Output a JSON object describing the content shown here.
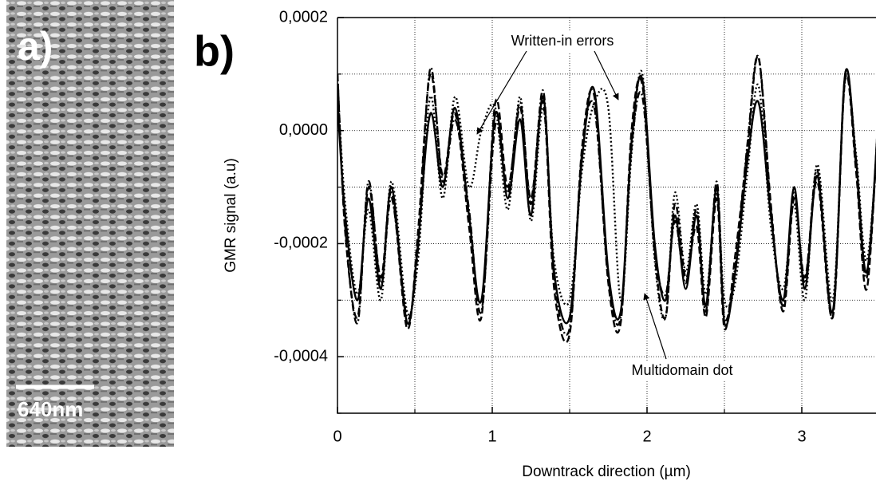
{
  "image_panel": {
    "label": "a)",
    "scale_bar": "640nm"
  },
  "chart_data": {
    "type": "line",
    "panel_label": "b)",
    "x_label": "Downtrack direction (µm)",
    "y_label": "GMR signal (a.u)",
    "xlim": [
      0,
      3.5
    ],
    "ylim": [
      -0.0005,
      0.0002
    ],
    "xticks": [
      0,
      1,
      2,
      3
    ],
    "yticks": [
      {
        "value": 0.0002,
        "label": "0,0002"
      },
      {
        "value": 0,
        "label": "0,0000"
      },
      {
        "value": -0.0002,
        "label": "-0,0002"
      },
      {
        "value": -0.0004,
        "label": "-0,0004"
      }
    ],
    "x_minor_ticks": [
      0.5,
      1.5,
      2.5,
      3.5
    ],
    "y_minor_ticks": [
      0.0001,
      -0.0001,
      -0.0003,
      -0.0005
    ],
    "grid": true,
    "annotations": [
      {
        "text": "Written-in errors"
      },
      {
        "text": "Multidomain dot"
      }
    ],
    "x": [
      0,
      0.05,
      0.13,
      0.2,
      0.28,
      0.35,
      0.45,
      0.52,
      0.6,
      0.68,
      0.76,
      0.85,
      0.93,
      1.02,
      1.1,
      1.18,
      1.25,
      1.33,
      1.4,
      1.5,
      1.58,
      1.66,
      1.75,
      1.83,
      1.9,
      1.97,
      2.05,
      2.12,
      2.18,
      2.25,
      2.32,
      2.38,
      2.45,
      2.5,
      2.57,
      2.65,
      2.72,
      2.8,
      2.88,
      2.95,
      3.02,
      3.1,
      3.2,
      3.28,
      3.35,
      3.42,
      3.5
    ],
    "series": [
      {
        "color": "#000000",
        "dash": "solid",
        "values": [
          5e-05,
          -0.00015,
          -0.0003,
          -0.00012,
          -0.00028,
          -0.0001,
          -0.00034,
          -0.0002,
          3e-05,
          -0.0001,
          4e-05,
          -0.00015,
          -0.0003,
          3e-05,
          -0.00012,
          2e-05,
          -0.00015,
          6e-05,
          -0.00025,
          -0.00033,
          -5e-05,
          7e-05,
          -0.00025,
          -0.00032,
          -2e-05,
          9e-05,
          -0.0002,
          -0.0003,
          -0.00015,
          -0.00028,
          -0.00015,
          -0.00031,
          -0.0001,
          -0.00034,
          -0.00025,
          -5e-05,
          5e-05,
          -0.00015,
          -0.0003,
          -0.0001,
          -0.00028,
          -8e-05,
          -0.00032,
          0.0001,
          -5e-05,
          -0.00025,
          5e-05
        ]
      },
      {
        "color": "#000000",
        "dash": "dash",
        "values": [
          0.0001,
          -0.00018,
          -0.00033,
          -0.0001,
          -0.00026,
          -0.00011,
          -0.00035,
          -0.00018,
          0.0001,
          -8e-05,
          3e-05,
          -0.00017,
          -0.00033,
          5e-05,
          -0.0001,
          4e-05,
          -0.00012,
          5e-05,
          -0.00028,
          -0.00036,
          -3e-05,
          6e-05,
          -0.00027,
          -0.00034,
          0.0,
          8e-05,
          -0.00022,
          -0.00033,
          -0.00013,
          -0.00026,
          -0.00017,
          -0.00033,
          -0.00012,
          -0.00035,
          -0.00022,
          -3e-05,
          0.00013,
          -0.00013,
          -0.00032,
          -0.00012,
          -0.00026,
          -9e-05,
          -0.00033,
          9e-05,
          -7e-05,
          -0.00028,
          6e-05
        ]
      },
      {
        "color": "#000000",
        "dash": "dot",
        "values": [
          8e-05,
          -0.00013,
          -0.00029,
          -0.00014,
          -0.0003,
          -9e-05,
          -0.00032,
          -0.00023,
          6e-05,
          -0.00012,
          6e-05,
          -0.0001,
          0.0,
          4e-05,
          -0.00014,
          6e-05,
          -0.00016,
          4e-05,
          -0.00023,
          -0.0003,
          -7e-05,
          5e-05,
          4e-05,
          -0.0003,
          -4e-05,
          0.0001,
          -0.00023,
          -0.00033,
          -0.00011,
          -0.00025,
          -0.00013,
          -0.00029,
          -0.00011,
          -0.0003,
          -0.00027,
          -7e-05,
          8e-05,
          -0.00017,
          -0.00028,
          -0.00013,
          -0.0003,
          -6e-05,
          -0.0003,
          9e-05,
          -4e-05,
          -0.00023,
          3e-05
        ]
      },
      {
        "color": "#000000",
        "dash": "dashdot",
        "values": [
          0.0001,
          -0.00017,
          -0.00034,
          -9e-05,
          -0.00027,
          -0.00012,
          -0.00033,
          -0.00021,
          0.00011,
          -9e-05,
          2e-05,
          -0.00014,
          -0.00032,
          1e-05,
          -0.00011,
          5e-05,
          -0.00013,
          7e-05,
          -0.00026,
          -0.00035,
          -4e-05,
          4e-05,
          -0.00026,
          -0.00033,
          -3e-05,
          6e-05,
          -0.00021,
          -0.00029,
          -0.00016,
          -0.00027,
          -0.00014,
          -0.00032,
          -9e-05,
          -0.00033,
          -0.00024,
          -2e-05,
          0.00013,
          -0.00014,
          -0.00031,
          -0.00011,
          -0.00027,
          -7e-05,
          -0.00033,
          0.0001,
          -6e-05,
          -0.00026,
          4e-05
        ]
      }
    ]
  }
}
